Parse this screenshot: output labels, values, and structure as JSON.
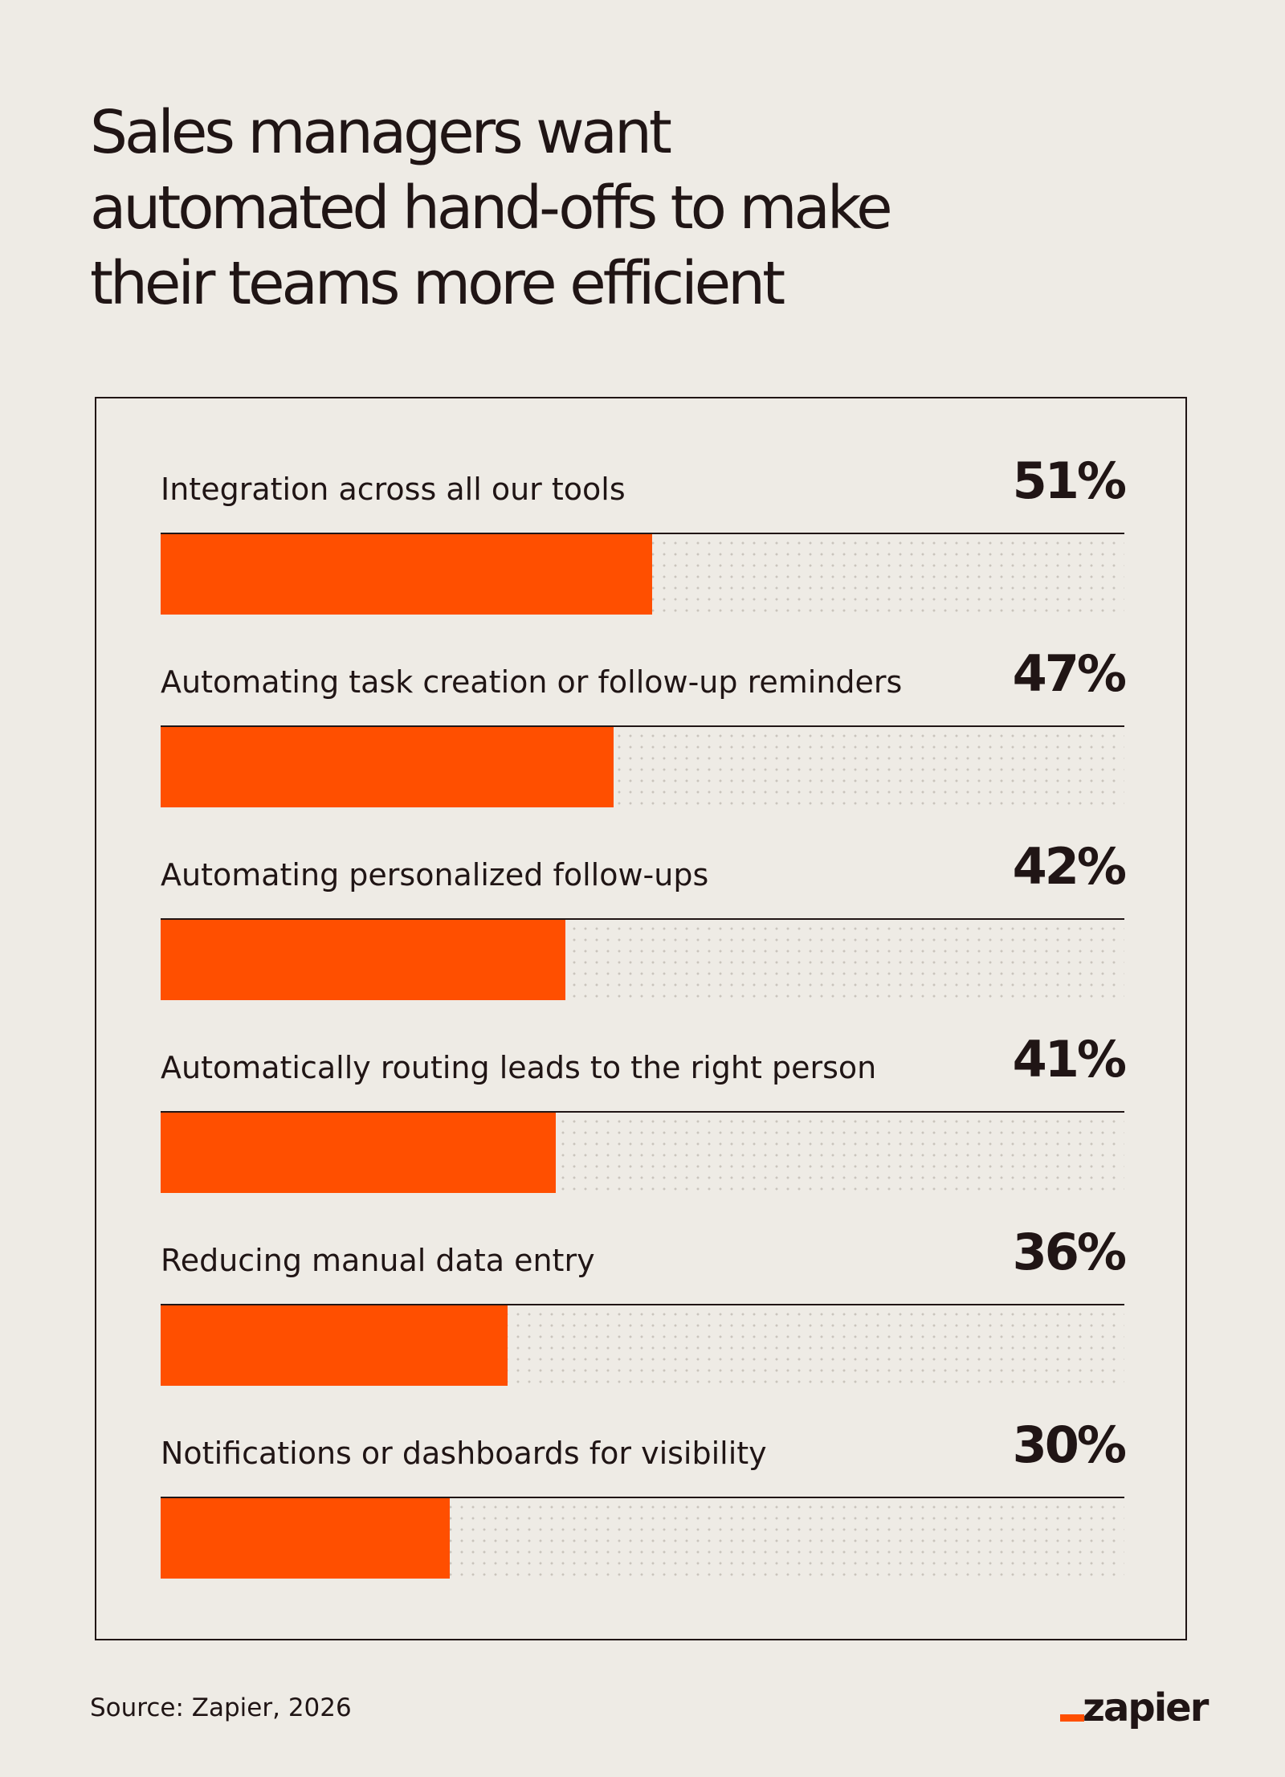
{
  "title_lines": [
    "Sales managers want",
    "automated hand-offs to make",
    "their teams more efficient"
  ],
  "source": "Source: Zapier, 2026",
  "logo_text": "zapier",
  "colors": {
    "background": "#eeebe5",
    "bar": "#ff4f00",
    "text": "#201515",
    "dots": "#c9c4bc"
  },
  "chart_data": {
    "type": "bar",
    "orientation": "horizontal",
    "title": "Sales managers want automated hand-offs to make their teams more efficient",
    "categories": [
      "Integration across all our tools",
      "Automating task creation or follow-up reminders",
      "Automating personalized follow-ups",
      "Automatically routing leads to the right person",
      "Reducing manual data entry",
      "Notifications or dashboards for visibility"
    ],
    "values": [
      51,
      47,
      42,
      41,
      36,
      30
    ],
    "value_labels": [
      "51%",
      "47%",
      "42%",
      "41%",
      "36%",
      "30%"
    ],
    "unit": "%",
    "xlim": [
      0,
      100
    ],
    "grid": false,
    "legend": "none"
  }
}
